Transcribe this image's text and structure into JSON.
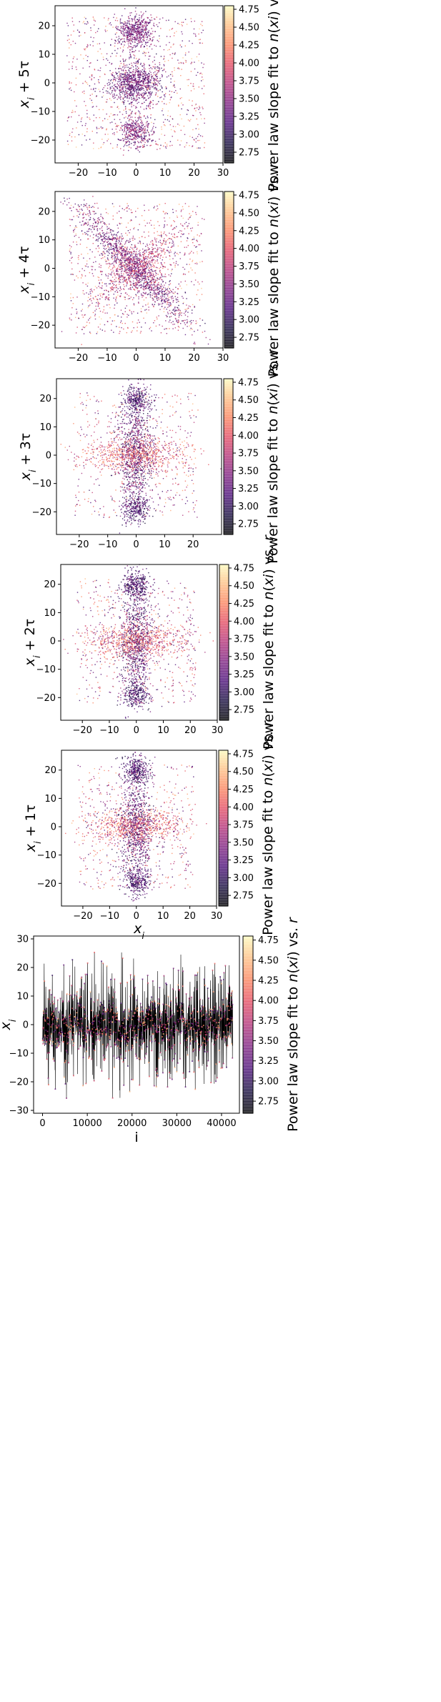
{
  "figure": {
    "colormap": "magma",
    "colormap_alpha": 0.75,
    "colorbar": {
      "label_parts": [
        "Power law slope fit to ",
        "n",
        "(",
        "x",
        "i",
        ") vs. ",
        "r"
      ],
      "range": [
        2.6,
        4.8
      ],
      "ticks": [
        2.75,
        3.0,
        3.25,
        3.5,
        3.75,
        4.0,
        4.25,
        4.5,
        4.75
      ],
      "tick_labels": [
        "2.75",
        "3.00",
        "3.25",
        "3.50",
        "3.75",
        "4.00",
        "4.25",
        "4.50",
        "4.75"
      ]
    }
  },
  "chart_data": [
    {
      "type": "scatter",
      "xlabel_parts": [],
      "ylabel_parts": [
        "x",
        "i",
        " + 5τ"
      ],
      "xlim": [
        -28,
        30
      ],
      "ylim": [
        -28,
        27
      ],
      "xticks": [
        -20,
        -10,
        0,
        10,
        20,
        30
      ],
      "xtick_labels": [
        "−20",
        "−10",
        "0",
        "10",
        "20",
        "30"
      ],
      "yticks": [
        -20,
        -10,
        0,
        10,
        20
      ],
      "ytick_labels": [
        "−20",
        "−10",
        "0",
        "10",
        "20"
      ],
      "cross_arms": [
        "blob"
      ],
      "colorbar": true
    },
    {
      "type": "scatter",
      "xlabel_parts": [],
      "ylabel_parts": [
        "x",
        "i",
        " + 4τ"
      ],
      "xlim": [
        -28,
        30
      ],
      "ylim": [
        -28,
        27
      ],
      "xticks": [
        -20,
        -10,
        0,
        10,
        20,
        30
      ],
      "xtick_labels": [
        "−20",
        "−10",
        "0",
        "10",
        "20",
        "30"
      ],
      "yticks": [
        -20,
        -10,
        0,
        10,
        20
      ],
      "ytick_labels": [
        "−20",
        "−10",
        "0",
        "10",
        "20"
      ],
      "cross_arms": [
        "diagonal"
      ],
      "colorbar": true
    },
    {
      "type": "scatter",
      "xlabel_parts": [],
      "ylabel_parts": [
        "x",
        "i",
        " + 3τ"
      ],
      "xlim": [
        -28,
        30
      ],
      "ylim": [
        -28,
        27
      ],
      "xticks": [
        -20,
        -10,
        0,
        10,
        20
      ],
      "xtick_labels": [
        "−20",
        "−10",
        "0",
        "10",
        "20"
      ],
      "yticks": [
        -20,
        -10,
        0,
        10,
        20
      ],
      "ytick_labels": [
        "−20",
        "−10",
        "0",
        "10",
        "20"
      ],
      "cross_arms": [
        "plus"
      ],
      "colorbar": true
    },
    {
      "type": "scatter",
      "xlabel_parts": [],
      "ylabel_parts": [
        "x",
        "i",
        " + 2τ"
      ],
      "xlim": [
        -28,
        30
      ],
      "ylim": [
        -28,
        27
      ],
      "xticks": [
        -20,
        -10,
        0,
        10,
        20,
        30
      ],
      "xtick_labels": [
        "−20",
        "−10",
        "0",
        "10",
        "20",
        "30"
      ],
      "yticks": [
        -20,
        -10,
        0,
        10,
        20
      ],
      "ytick_labels": [
        "−20",
        "−10",
        "0",
        "10",
        "20"
      ],
      "cross_arms": [
        "plus"
      ],
      "colorbar": true
    },
    {
      "type": "scatter",
      "xlabel_parts": [
        "x",
        "i",
        ""
      ],
      "ylabel_parts": [
        "x",
        "i",
        " + 1τ"
      ],
      "xlim": [
        -28,
        30
      ],
      "ylim": [
        -28,
        27
      ],
      "xticks": [
        -20,
        -10,
        0,
        10,
        20,
        30
      ],
      "xtick_labels": [
        "−20",
        "−10",
        "0",
        "10",
        "20",
        "30"
      ],
      "yticks": [
        -20,
        -10,
        0,
        10,
        20
      ],
      "ytick_labels": [
        "−20",
        "−10",
        "0",
        "10",
        "20"
      ],
      "cross_arms": [
        "plus"
      ],
      "colorbar": true
    },
    {
      "type": "line",
      "xlabel_parts": [
        "i"
      ],
      "ylabel_parts": [
        "x",
        "i",
        ""
      ],
      "xlim": [
        -2000,
        44000
      ],
      "ylim": [
        -31,
        31
      ],
      "xticks": [
        0,
        10000,
        20000,
        30000,
        40000
      ],
      "xtick_labels": [
        "0",
        "10000",
        "20000",
        "30000",
        "40000"
      ],
      "yticks": [
        -30,
        -20,
        -10,
        0,
        10,
        20,
        30
      ],
      "ytick_labels": [
        "−30",
        "−20",
        "−10",
        "0",
        "10",
        "20",
        "30"
      ],
      "line_color": "#000000",
      "colorbar": true
    }
  ]
}
